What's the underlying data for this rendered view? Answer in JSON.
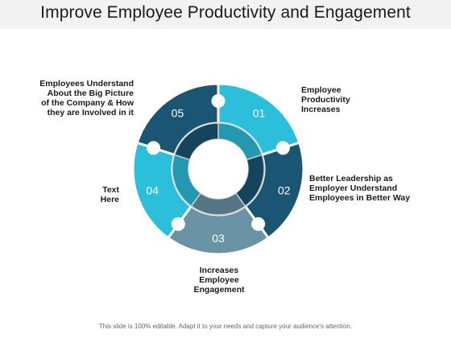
{
  "title": "Improve Employee Productivity and Engagement",
  "colors": {
    "title_bar": "#f2f2f2",
    "dark_blue": "#1a5673",
    "cyan": "#2bbfdc",
    "gray_blue": "#6a94a6",
    "white": "#ffffff"
  },
  "segments": [
    {
      "number": "01",
      "label": "Employee\nProductivity\nIncreases",
      "color": "#2bbfdc"
    },
    {
      "number": "02",
      "label": "Better Leadership as\nEmployer Understand\nEmployees in Better Way",
      "color": "#1a5673"
    },
    {
      "number": "03",
      "label": "Increases\nEmployee\nEngagement",
      "color": "#6a94a6"
    },
    {
      "number": "04",
      "label": "Text\nHere",
      "color": "#2bbfdc"
    },
    {
      "number": "05",
      "label": "Employees Understand\nAbout the Big Picture\nof the Company & How\nthey are Involved in it",
      "color": "#1a5673"
    }
  ],
  "footer": "This slide is 100% editable. Adapt it to your needs and capture your audience's attention."
}
